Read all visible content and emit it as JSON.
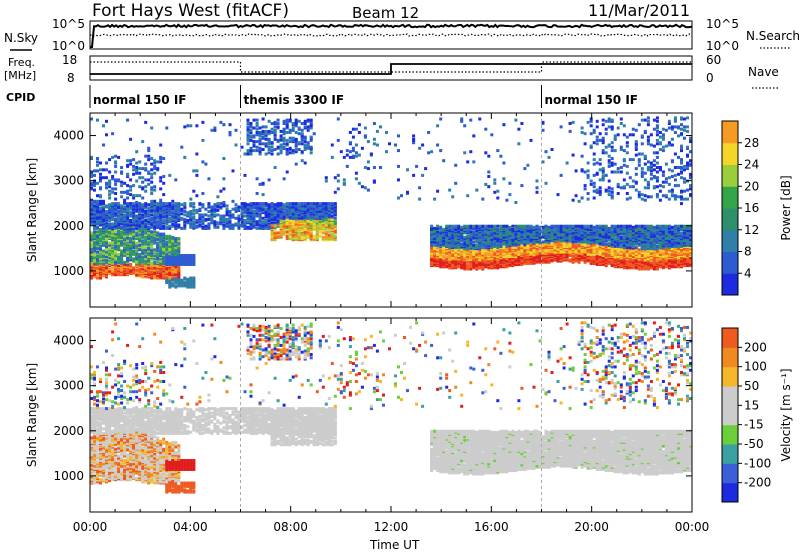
{
  "header": {
    "station": "Fort Hays West (fitACF)",
    "beam": "Beam 12",
    "date": "11/Mar/2011"
  },
  "side_labels": {
    "nsky": "N.Sky",
    "nsearch": "N.Search",
    "freq": "Freq.",
    "freq_unit": "[MHz]",
    "nave": "Nave",
    "cpid": "CPID"
  },
  "noise_axis": {
    "left_top": "10^5",
    "left_bottom": "10^0",
    "right_top": "10^5",
    "right_bottom": "10^0"
  },
  "freq_axis": {
    "left_top": "18",
    "left_bottom": "8",
    "right_top": "60",
    "right_bottom": "0"
  },
  "cpid_segments": [
    {
      "label": "normal 150 IF",
      "start_h": 0
    },
    {
      "label": "themis 3300 IF",
      "start_h": 6
    },
    {
      "label": "normal 150 IF",
      "start_h": 18
    }
  ],
  "colors": {
    "power": [
      "#1d2be0",
      "#2c5cd0",
      "#2f7fa8",
      "#2e8f6a",
      "#34a44a",
      "#9bcf3a",
      "#f4d52a",
      "#f59a22",
      "#ee5a20",
      "#e01e1e"
    ],
    "velocity": [
      "#1d2be0",
      "#3a5fd6",
      "#3aa0a0",
      "#6ccf3a",
      "#cccccc",
      "#cccccc",
      "#f5b62a",
      "#f08a20",
      "#ee5a20",
      "#e01e1e"
    ]
  },
  "chart_data": [
    {
      "type": "heatmap",
      "title": "Power",
      "ylabel": "Slant Range [km]",
      "xlim": [
        0,
        24
      ],
      "ylim": [
        200,
        4500
      ],
      "yticks": [
        1000,
        2000,
        3000,
        4000
      ],
      "colorbar": {
        "label": "Power [dB]",
        "range": [
          0,
          32
        ],
        "ticks": [
          4,
          8,
          12,
          16,
          20,
          24,
          28
        ]
      },
      "regions": [
        {
          "name": "near-range band",
          "x": [
            0.0,
            3.5
          ],
          "y": [
            850,
            1600
          ],
          "value_db": 20
        },
        {
          "name": "upper band",
          "x": [
            0.0,
            9.5
          ],
          "y": [
            2000,
            2500
          ],
          "value_db": 6
        },
        {
          "name": "morning arc",
          "x": [
            7.0,
            9.5
          ],
          "y": [
            1800,
            2300
          ],
          "value_db": 16
        },
        {
          "name": "afternoon band",
          "x": [
            13.5,
            24.0
          ],
          "y": [
            1100,
            1900
          ],
          "value_db": 24
        },
        {
          "name": "scattered echoes",
          "x": [
            0.0,
            24.0
          ],
          "y": [
            2500,
            4500
          ],
          "value_db": 5
        }
      ]
    },
    {
      "type": "heatmap",
      "title": "Velocity",
      "ylabel": "Slant Range [km]",
      "xlabel": "Time UT",
      "xlim": [
        0,
        24
      ],
      "ylim": [
        200,
        4500
      ],
      "yticks": [
        1000,
        2000,
        3000,
        4000
      ],
      "xticks": [
        "00:00",
        "04:00",
        "08:00",
        "12:00",
        "16:00",
        "20:00",
        "00:00"
      ],
      "colorbar": {
        "label": "Velocity [m s⁻¹]",
        "ticks": [
          "200",
          "100",
          "50",
          "15",
          "-15",
          "-50",
          "-100",
          "-200"
        ]
      },
      "regions": [
        {
          "name": "near-range mixed",
          "x": [
            0.0,
            3.5
          ],
          "y": [
            850,
            2500
          ],
          "value_ms": -50
        },
        {
          "name": "red patch",
          "x": [
            3.0,
            4.2
          ],
          "y": [
            1150,
            1350
          ],
          "value_ms": -200
        },
        {
          "name": "ground scatter",
          "x": [
            6.0,
            10.5
          ],
          "y": [
            1900,
            2500
          ],
          "value_ms": 0
        },
        {
          "name": "afternoon ground scatter",
          "x": [
            13.5,
            24.0
          ],
          "y": [
            1100,
            1900
          ],
          "value_ms": 0
        }
      ]
    }
  ]
}
